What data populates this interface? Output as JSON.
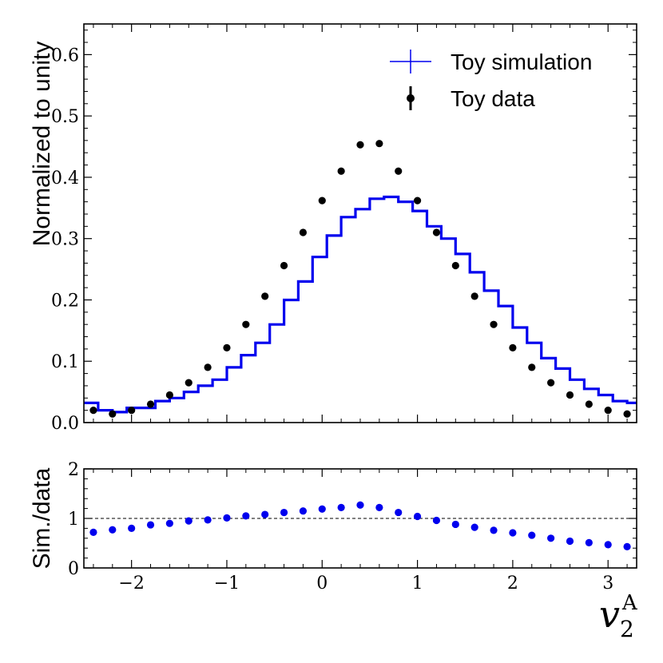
{
  "chart_data": [
    {
      "name": "main-panel",
      "type": "histogram_with_points",
      "xlim": [
        -2.5,
        3.3
      ],
      "ylim": [
        0,
        0.65
      ],
      "ylabel": "Normalized to unity",
      "yticks": [
        0.0,
        0.1,
        0.2,
        0.3,
        0.4,
        0.5,
        0.6
      ],
      "ytick_labels": [
        "0.0",
        "0.1",
        "0.2",
        "0.3",
        "0.4",
        "0.5",
        "0.6"
      ],
      "legend": {
        "location": "top-right",
        "entries": [
          "Toy simulation",
          "Toy data"
        ]
      },
      "series": [
        {
          "name": "Toy simulation",
          "kind": "step",
          "color": "#0000ee",
          "bin_edges": [
            -2.5,
            -2.35,
            -2.2,
            -2.05,
            -1.9,
            -1.75,
            -1.6,
            -1.45,
            -1.3,
            -1.15,
            -1.0,
            -0.85,
            -0.7,
            -0.55,
            -0.4,
            -0.25,
            -0.1,
            0.05,
            0.2,
            0.35,
            0.5,
            0.65,
            0.8,
            0.95,
            1.1,
            1.25,
            1.4,
            1.55,
            1.7,
            1.85,
            2.0,
            2.15,
            2.3,
            2.45,
            2.6,
            2.75,
            2.9,
            3.05,
            3.2,
            3.3
          ],
          "values": [
            0.032,
            0.02,
            0.017,
            0.024,
            0.024,
            0.035,
            0.04,
            0.05,
            0.06,
            0.07,
            0.09,
            0.11,
            0.13,
            0.16,
            0.2,
            0.23,
            0.27,
            0.305,
            0.335,
            0.348,
            0.365,
            0.368,
            0.36,
            0.345,
            0.32,
            0.3,
            0.275,
            0.245,
            0.215,
            0.19,
            0.155,
            0.13,
            0.105,
            0.088,
            0.07,
            0.055,
            0.045,
            0.035,
            0.032
          ]
        },
        {
          "name": "Toy data",
          "kind": "points",
          "color": "#000000",
          "x": [
            -2.4,
            -2.2,
            -2.0,
            -1.8,
            -1.6,
            -1.4,
            -1.2,
            -1.0,
            -0.8,
            -0.6,
            -0.4,
            -0.2,
            0.0,
            0.2,
            0.4,
            0.6,
            0.8,
            1.0,
            1.2,
            1.4,
            1.6,
            1.8,
            2.0,
            2.2,
            2.4,
            2.6,
            2.8,
            3.0,
            3.2
          ],
          "y": [
            0.02,
            0.014,
            0.02,
            0.03,
            0.045,
            0.065,
            0.09,
            0.122,
            0.16,
            0.206,
            0.256,
            0.31,
            0.362,
            0.41,
            0.453,
            0.455,
            0.41,
            0.362,
            0.31,
            0.256,
            0.206,
            0.16,
            0.122,
            0.09,
            0.065,
            0.045,
            0.03,
            0.02,
            0.014
          ]
        }
      ]
    },
    {
      "name": "ratio-panel",
      "type": "scatter",
      "xlim": [
        -2.5,
        3.3
      ],
      "ylim": [
        0,
        2
      ],
      "xlabel": "v",
      "xlabel_sub": "2",
      "xlabel_sup": "A",
      "ylabel": "Sim./data",
      "xticks": [
        -2,
        -1,
        0,
        1,
        2,
        3
      ],
      "xtick_labels": [
        "−2",
        "−1",
        "0",
        "1",
        "2",
        "3"
      ],
      "yticks": [
        0,
        1,
        2
      ],
      "ytick_labels": [
        "0",
        "1",
        "2"
      ],
      "reference_line": 1,
      "series": [
        {
          "name": "Sim./data",
          "color": "#0000ee",
          "x": [
            -2.4,
            -2.2,
            -2.0,
            -1.8,
            -1.6,
            -1.4,
            -1.2,
            -1.0,
            -0.8,
            -0.6,
            -0.4,
            -0.2,
            0.0,
            0.2,
            0.4,
            0.6,
            0.8,
            1.0,
            1.2,
            1.4,
            1.6,
            1.8,
            2.0,
            2.2,
            2.4,
            2.6,
            2.8,
            3.0,
            3.2
          ],
          "y": [
            0.72,
            0.77,
            0.8,
            0.87,
            0.9,
            0.95,
            0.97,
            1.01,
            1.05,
            1.08,
            1.12,
            1.15,
            1.19,
            1.22,
            1.27,
            1.22,
            1.12,
            1.04,
            0.96,
            0.88,
            0.82,
            0.76,
            0.71,
            0.66,
            0.6,
            0.54,
            0.51,
            0.47,
            0.43
          ]
        }
      ]
    }
  ]
}
